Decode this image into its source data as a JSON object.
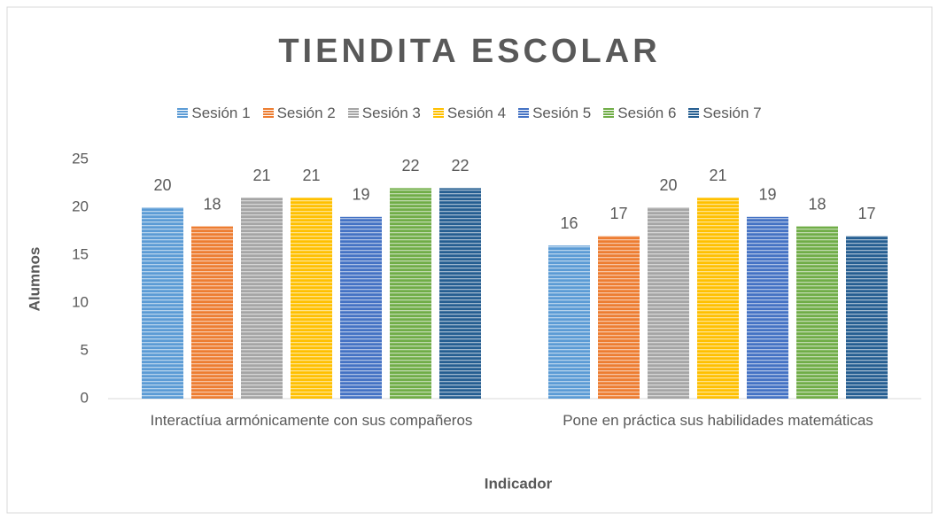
{
  "chart_data": {
    "type": "bar",
    "title": "TIENDITA ESCOLAR",
    "x_label": "Indicador",
    "y_label": "Alumnos",
    "categories": [
      "Interactíua armónicamente con sus compañeros",
      "Pone en práctica sus habilidades matemáticas"
    ],
    "series": [
      {
        "name": "Sesión 1",
        "color": "#5b9bd5",
        "values": [
          20,
          16
        ]
      },
      {
        "name": "Sesión 2",
        "color": "#ed7d31",
        "values": [
          18,
          17
        ]
      },
      {
        "name": "Sesión 3",
        "color": "#a5a5a5",
        "values": [
          21,
          20
        ]
      },
      {
        "name": "Sesión 4",
        "color": "#ffc000",
        "values": [
          21,
          21
        ]
      },
      {
        "name": "Sesión 5",
        "color": "#4472c4",
        "values": [
          19,
          19
        ]
      },
      {
        "name": "Sesión 6",
        "color": "#70ad47",
        "values": [
          22,
          18
        ]
      },
      {
        "name": "Sesión 7",
        "color": "#255e91",
        "values": [
          22,
          17
        ]
      }
    ],
    "ylim": [
      0,
      25
    ],
    "yticks": [
      0,
      5,
      10,
      15,
      20,
      25
    ],
    "grid": false,
    "legend": "top"
  }
}
